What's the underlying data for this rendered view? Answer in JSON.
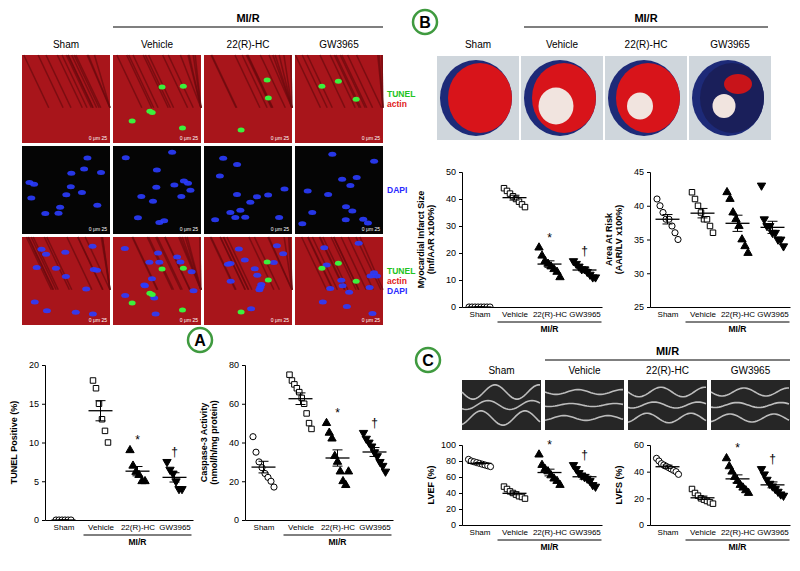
{
  "chart_data": [
    {
      "type": "dot",
      "y_label": [
        "TUNEL Positive (%)"
      ],
      "categories": [
        "Sham",
        "Vehicle",
        "22(R)-HC",
        "GW3965"
      ],
      "group_label": "MI/R",
      "markers": [
        "circle-open",
        "square-open",
        "triangle-up",
        "triangle-down"
      ],
      "color": "#000000",
      "values": [
        [
          0,
          0,
          0,
          0,
          0,
          0
        ],
        [
          18,
          17,
          15,
          13,
          11.5,
          10
        ],
        [
          9,
          7,
          6.2,
          5.8,
          5,
          5
        ],
        [
          7.5,
          6.5,
          6,
          5,
          4,
          4
        ]
      ],
      "means": [
        0,
        14.1,
        6.3,
        5.5
      ],
      "sems": [
        0,
        1.3,
        0.6,
        0.6
      ],
      "annotations": [
        null,
        null,
        "*",
        "†"
      ],
      "ylim": [
        0,
        20
      ],
      "yticks": [
        0,
        5,
        10,
        15,
        20
      ]
    },
    {
      "type": "dot",
      "y_label": [
        "Caspase-3 Activity",
        "(nmol/h/mg protein)"
      ],
      "categories": [
        "Sham",
        "Vehicle",
        "22(R)-HC",
        "GW3965"
      ],
      "group_label": "MI/R",
      "markers": [
        "circle-open",
        "square-open",
        "triangle-up",
        "triangle-down"
      ],
      "color": "#000000",
      "values": [
        [
          43,
          35,
          30,
          27,
          24,
          22,
          20,
          17
        ],
        [
          75,
          72,
          70,
          68,
          66,
          63,
          60,
          55,
          50,
          47
        ],
        [
          50,
          45,
          42,
          33,
          30,
          25,
          20,
          18,
          25
        ],
        [
          45,
          42,
          40,
          38,
          35,
          33,
          30,
          28,
          25
        ]
      ],
      "means": [
        27.3,
        62.6,
        32,
        35.1
      ],
      "sems": [
        3,
        3,
        4.2,
        2.3
      ],
      "annotations": [
        null,
        null,
        "*",
        "†"
      ],
      "ylim": [
        0,
        80
      ],
      "yticks": [
        0,
        20,
        40,
        60,
        80
      ]
    },
    {
      "type": "dot",
      "y_label": [
        "Myocardial Infarct Size",
        "(Inf/AAR x100%)"
      ],
      "categories": [
        "Sham",
        "Vehicle",
        "22(R)-HC",
        "GW3965"
      ],
      "group_label": "MI/R",
      "markers": [
        "circle-open",
        "square-open",
        "triangle-up",
        "triangle-down"
      ],
      "color": "#000000",
      "values": [
        [
          0,
          0,
          0,
          0,
          0,
          0,
          0,
          0
        ],
        [
          44,
          43,
          42,
          41,
          40,
          39,
          38,
          37
        ],
        [
          22,
          19,
          17,
          16,
          15,
          14,
          13,
          11
        ],
        [
          17,
          16,
          15,
          14,
          14,
          13,
          12,
          11,
          11
        ]
      ],
      "means": [
        0,
        40.5,
        15.9,
        13.7
      ],
      "sems": [
        0,
        0.9,
        1.2,
        0.7
      ],
      "annotations": [
        null,
        null,
        "*",
        "†"
      ],
      "ylim": [
        0,
        50
      ],
      "yticks": [
        0,
        10,
        20,
        30,
        40,
        50
      ]
    },
    {
      "type": "dot",
      "y_label": [
        "Area At Risk",
        "(AAR/LV x100%)"
      ],
      "categories": [
        "Sham",
        "Vehicle",
        "22(R)-HC",
        "GW3965"
      ],
      "group_label": "MI/R",
      "markers": [
        "circle-open",
        "square-open",
        "triangle-up",
        "triangle-down"
      ],
      "color": "#000000",
      "values": [
        [
          41,
          40,
          39,
          38,
          38,
          37,
          36,
          35
        ],
        [
          42,
          41,
          40,
          39,
          38,
          38,
          37,
          36
        ],
        [
          42,
          41,
          39,
          38,
          37,
          35,
          34,
          33
        ],
        [
          43,
          38,
          37,
          37,
          36,
          36,
          35,
          35,
          34
        ]
      ],
      "means": [
        38,
        38.9,
        37.4,
        36.8
      ],
      "sems": [
        0.7,
        0.7,
        1.2,
        0.9
      ],
      "annotations": [
        null,
        null,
        null,
        null
      ],
      "ylim": [
        25,
        45
      ],
      "yticks": [
        25,
        30,
        35,
        40,
        45
      ]
    },
    {
      "type": "dot",
      "y_label": [
        "LVEF (%)"
      ],
      "categories": [
        "Sham",
        "Vehicle",
        "22(R)-HC",
        "GW3965"
      ],
      "group_label": "MI/R",
      "markers": [
        "circle-open",
        "square-open",
        "triangle-up",
        "triangle-down"
      ],
      "color": "#000000",
      "values": [
        [
          82,
          80,
          79,
          78,
          77,
          76,
          75,
          74,
          73
        ],
        [
          48,
          45,
          42,
          40,
          38,
          36,
          35,
          33
        ],
        [
          88,
          75,
          70,
          67,
          62,
          58,
          55,
          50
        ],
        [
          75,
          70,
          65,
          62,
          60,
          58,
          55,
          50,
          48
        ]
      ],
      "means": [
        77.1,
        39.6,
        65.6,
        60.3
      ],
      "sems": [
        1,
        1.8,
        4.2,
        3
      ],
      "annotations": [
        null,
        null,
        "*",
        "†"
      ],
      "ylim": [
        0,
        100
      ],
      "yticks": [
        0,
        20,
        40,
        60,
        80,
        100
      ]
    },
    {
      "type": "dot",
      "y_label": [
        "LVFS (%)"
      ],
      "categories": [
        "Sham",
        "Vehicle",
        "22(R)-HC",
        "GW3965"
      ],
      "group_label": "MI/R",
      "markers": [
        "circle-open",
        "square-open",
        "triangle-up",
        "triangle-down"
      ],
      "color": "#000000",
      "values": [
        [
          50,
          48,
          46,
          45,
          44,
          43,
          42,
          41,
          40,
          38
        ],
        [
          27,
          24,
          22,
          20,
          19,
          18,
          17,
          16
        ],
        [
          50,
          44,
          40,
          36,
          33,
          30,
          28,
          26,
          24
        ],
        [
          42,
          38,
          34,
          31,
          29,
          27,
          25,
          23,
          22
        ]
      ],
      "means": [
        43.7,
        20.4,
        34.6,
        30.1
      ],
      "sems": [
        1.2,
        1.3,
        3,
        2.2
      ],
      "annotations": [
        null,
        null,
        "*",
        "†"
      ],
      "ylim": [
        0,
        60
      ],
      "yticks": [
        0,
        20,
        40,
        60
      ]
    }
  ],
  "panels": [
    {
      "letter": "A",
      "group_label": "MI/R",
      "columns": [
        "Sham",
        "Vehicle",
        "22(R)-HC",
        "GW3965"
      ],
      "scale_bar": "0  μm 25",
      "rows": [
        [
          {
            "text": "TUNEL",
            "color": "#22c322"
          },
          {
            "text": "actin",
            "color": "#e02020"
          }
        ],
        [
          {
            "text": "DAPI",
            "color": "#2a2aff"
          }
        ],
        [
          {
            "text": "TUNEL",
            "color": "#22c322"
          },
          {
            "text": "actin",
            "color": "#e02020"
          },
          {
            "text": "DAPI",
            "color": "#2a2aff"
          }
        ]
      ]
    },
    {
      "letter": "B",
      "group_label": "MI/R",
      "columns": [
        "Sham",
        "Vehicle",
        "22(R)-HC",
        "GW3965"
      ]
    },
    {
      "letter": "C",
      "group_label": "MI/R",
      "columns": [
        "Sham",
        "Vehicle",
        "22(R)-HC",
        "GW3965"
      ]
    }
  ]
}
